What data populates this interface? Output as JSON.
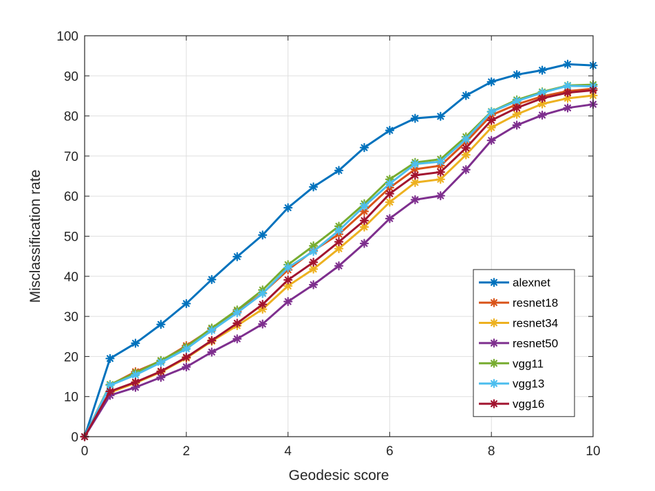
{
  "chart_data": {
    "type": "line",
    "title": "",
    "xlabel": "Geodesic score",
    "ylabel": "Misclassification rate",
    "xlim": [
      0,
      10
    ],
    "ylim": [
      0,
      100
    ],
    "xticks": [
      0,
      2,
      4,
      6,
      8,
      10
    ],
    "xtick_labels": [
      "0",
      "2",
      "4",
      "6",
      "8",
      "10"
    ],
    "yticks": [
      0,
      10,
      20,
      30,
      40,
      50,
      60,
      70,
      80,
      90,
      100
    ],
    "ytick_labels": [
      "0",
      "10",
      "20",
      "30",
      "40",
      "50",
      "60",
      "70",
      "80",
      "90",
      "100"
    ],
    "grid": true,
    "legend_position": "bottom-right",
    "marker": "asterisk",
    "x": [
      0,
      0.5,
      1,
      1.5,
      2,
      2.5,
      3,
      3.5,
      4,
      4.5,
      5,
      5.5,
      6,
      6.5,
      7,
      7.5,
      8,
      8.5,
      9,
      9.5,
      10
    ],
    "series": [
      {
        "name": "alexnet",
        "color": "#0072BD",
        "values": [
          0,
          19.5,
          23.3,
          28.0,
          33.2,
          39.2,
          44.9,
          50.3,
          57.1,
          62.3,
          66.4,
          72.1,
          76.4,
          79.4,
          79.9,
          85.1,
          88.5,
          90.3,
          91.4,
          92.9,
          92.6
        ]
      },
      {
        "name": "resnet18",
        "color": "#D95319",
        "values": [
          0,
          12.9,
          16.2,
          18.9,
          22.7,
          26.9,
          31.2,
          35.8,
          41.6,
          46.4,
          50.5,
          56.2,
          62.1,
          66.7,
          67.6,
          73.5,
          80.2,
          82.9,
          84.9,
          86.2,
          86.8
        ]
      },
      {
        "name": "resnet34",
        "color": "#EDB120",
        "values": [
          0,
          11.0,
          13.4,
          16.1,
          19.6,
          23.8,
          27.7,
          31.8,
          37.6,
          41.8,
          46.9,
          52.3,
          58.5,
          63.4,
          64.2,
          70.3,
          77.1,
          80.4,
          83.0,
          84.4,
          85.1
        ]
      },
      {
        "name": "resnet50",
        "color": "#7E2F8E",
        "values": [
          0,
          10.3,
          12.3,
          14.8,
          17.4,
          21.1,
          24.4,
          28.1,
          33.7,
          37.9,
          42.6,
          48.2,
          54.4,
          59.1,
          60.1,
          66.6,
          73.9,
          77.7,
          80.2,
          82.0,
          82.9
        ]
      },
      {
        "name": "vgg11",
        "color": "#77AC30",
        "values": [
          0,
          13.0,
          15.9,
          19.0,
          22.4,
          27.1,
          31.6,
          36.6,
          42.9,
          47.6,
          52.5,
          58.1,
          64.2,
          68.4,
          69.2,
          74.8,
          81.1,
          84.0,
          86.0,
          87.6,
          87.8
        ]
      },
      {
        "name": "vgg13",
        "color": "#4DBEEE",
        "values": [
          0,
          12.8,
          15.4,
          18.5,
          21.9,
          26.5,
          30.9,
          35.7,
          42.2,
          46.2,
          51.4,
          57.5,
          63.1,
          68.0,
          68.6,
          74.2,
          81.0,
          83.7,
          85.8,
          87.5,
          87.4
        ]
      },
      {
        "name": "vgg16",
        "color": "#A2142F",
        "values": [
          0,
          11.3,
          13.6,
          16.3,
          19.8,
          24.0,
          28.3,
          33.0,
          39.1,
          43.5,
          48.6,
          53.9,
          60.6,
          65.2,
          66.0,
          72.0,
          78.9,
          82.0,
          84.4,
          85.8,
          86.4
        ]
      }
    ]
  }
}
